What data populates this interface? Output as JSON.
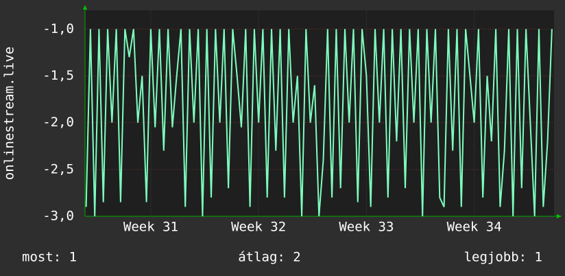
{
  "chart_data": {
    "type": "line",
    "y_label": "onlinestream.live",
    "x": [
      30.4,
      30.44,
      30.48,
      30.52,
      30.56,
      30.6,
      30.64,
      30.68,
      30.72,
      30.76,
      30.8,
      30.84,
      30.88,
      30.92,
      30.96,
      31,
      31.04,
      31.08,
      31.12,
      31.16,
      31.2,
      31.24,
      31.28,
      31.32,
      31.36,
      31.4,
      31.44,
      31.48,
      31.52,
      31.56,
      31.6,
      31.64,
      31.68,
      31.72,
      31.76,
      31.8,
      31.84,
      31.88,
      31.92,
      31.96,
      32,
      32.04,
      32.08,
      32.12,
      32.16,
      32.2,
      32.24,
      32.28,
      32.32,
      32.36,
      32.4,
      32.44,
      32.48,
      32.52,
      32.56,
      32.6,
      32.64,
      32.68,
      32.72,
      32.76,
      32.8,
      32.84,
      32.88,
      32.92,
      32.96,
      33,
      33.04,
      33.08,
      33.12,
      33.16,
      33.2,
      33.24,
      33.28,
      33.32,
      33.36,
      33.4,
      33.44,
      33.48,
      33.52,
      33.56,
      33.6,
      33.64,
      33.68,
      33.72,
      33.76,
      33.8,
      33.84,
      33.88,
      33.92,
      33.96,
      34,
      34.04,
      34.08,
      34.12,
      34.16,
      34.2,
      34.24,
      34.28,
      34.32,
      34.36,
      34.4,
      34.44,
      34.48,
      34.52,
      34.56,
      34.6,
      34.64,
      34.68,
      34.72
    ],
    "series": [
      {
        "name": "onlinestream.live",
        "color": "#7dffbe",
        "values": [
          -2.9,
          -1,
          -3.0,
          -1,
          -2.85,
          -1,
          -2.0,
          -1,
          -2.85,
          -1,
          -1.3,
          -1,
          -2.0,
          -1.5,
          -2.85,
          -1,
          -2.05,
          -1,
          -2.3,
          -1,
          -2.05,
          -1.5,
          -1,
          -2.9,
          -1,
          -2.0,
          -1,
          -3.0,
          -1,
          -2.8,
          -1,
          -2.0,
          -1,
          -2.7,
          -1,
          -1.5,
          -2.05,
          -1,
          -2.9,
          -1,
          -2.0,
          -1,
          -2.8,
          -1,
          -2.3,
          -1,
          -2.8,
          -1,
          -2.0,
          -1.5,
          -3.0,
          -1,
          -2.0,
          -1.6,
          -3.0,
          -2.4,
          -1,
          -2.8,
          -1,
          -2.7,
          -1,
          -2.0,
          -1,
          -2.85,
          -1,
          -1.5,
          -2.9,
          -1,
          -2.0,
          -1,
          -2.8,
          -1,
          -2.2,
          -1,
          -2.7,
          -1,
          -2.0,
          -1,
          -3.0,
          -1,
          -2.0,
          -1,
          -2.8,
          -2.9,
          -1,
          -2.3,
          -1,
          -2.9,
          -1,
          -1.5,
          -2.0,
          -1,
          -2.8,
          -1.5,
          -2.2,
          -1,
          -2.9,
          -2.3,
          -1,
          -3.0,
          -1,
          -2.7,
          -1,
          -2.0,
          -3.0,
          -1,
          -2.9,
          -2.2,
          -1
        ]
      }
    ],
    "xlim": [
      30.39,
      34.74
    ],
    "xticks": [
      {
        "value": 31,
        "label": "Week 31"
      },
      {
        "value": 32,
        "label": "Week 32"
      },
      {
        "value": 33,
        "label": "Week 33"
      },
      {
        "value": 34,
        "label": "Week 34"
      }
    ],
    "ylim": [
      -3,
      -0.8
    ],
    "yticks": [
      {
        "value": -3,
        "label": "-3,0"
      },
      {
        "value": -2.5,
        "label": "-2,5"
      },
      {
        "value": -2,
        "label": "-2,0"
      },
      {
        "value": -1.5,
        "label": "-1,5"
      },
      {
        "value": -1,
        "label": "-1,0"
      }
    ],
    "grid": true,
    "footer": [
      "most: 1",
      "átlag: 2",
      "legjobb: 1"
    ]
  }
}
